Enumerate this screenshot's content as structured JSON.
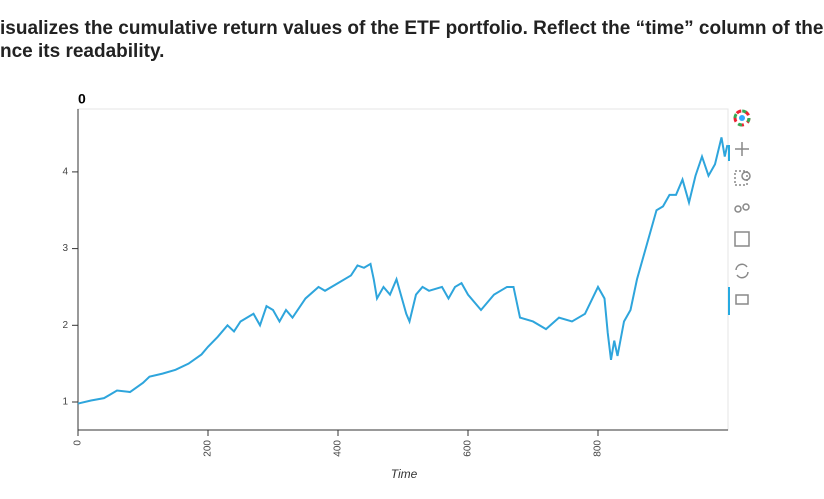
{
  "intro": [
    "isualizes the cumulative return values of the ETF portfolio. Reflect the “time” column of the D",
    "nce its readability."
  ],
  "chart_data": {
    "type": "line",
    "title": "0",
    "x_label": "Time",
    "x": [
      0,
      20,
      40,
      50,
      60,
      80,
      100,
      110,
      130,
      150,
      170,
      190,
      200,
      215,
      230,
      240,
      250,
      270,
      280,
      290,
      300,
      310,
      320,
      330,
      350,
      370,
      380,
      400,
      420,
      430,
      440,
      450,
      455,
      460,
      470,
      480,
      490,
      500,
      505,
      510,
      520,
      530,
      540,
      560,
      570,
      580,
      590,
      600,
      620,
      640,
      660,
      670,
      680,
      700,
      720,
      740,
      760,
      780,
      800,
      810,
      815,
      820,
      825,
      830,
      840,
      850,
      860,
      870,
      880,
      890,
      900,
      910,
      920,
      930,
      940,
      950,
      960,
      970,
      980,
      990,
      995,
      999
    ],
    "series": [
      {
        "name": "0",
        "color": "#2ea5dc",
        "values": [
          0.98,
          1.02,
          1.05,
          1.1,
          1.15,
          1.13,
          1.25,
          1.33,
          1.37,
          1.42,
          1.5,
          1.62,
          1.72,
          1.85,
          2.0,
          1.92,
          2.05,
          2.15,
          2.0,
          2.25,
          2.2,
          2.05,
          2.2,
          2.1,
          2.35,
          2.5,
          2.45,
          2.55,
          2.65,
          2.78,
          2.75,
          2.8,
          2.6,
          2.35,
          2.5,
          2.4,
          2.6,
          2.3,
          2.15,
          2.05,
          2.4,
          2.5,
          2.45,
          2.5,
          2.35,
          2.5,
          2.55,
          2.4,
          2.2,
          2.4,
          2.5,
          2.5,
          2.1,
          2.05,
          1.95,
          2.1,
          2.05,
          2.15,
          2.5,
          2.35,
          1.9,
          1.55,
          1.8,
          1.6,
          2.05,
          2.2,
          2.6,
          2.9,
          3.2,
          3.5,
          3.55,
          3.7,
          3.7,
          3.9,
          3.6,
          3.95,
          4.2,
          3.95,
          4.1,
          4.45,
          4.2,
          4.35
        ]
      }
    ],
    "xlim": [
      0,
      1000
    ],
    "ylim": [
      0.635,
      4.82
    ],
    "xticks": [
      0,
      200,
      400,
      600,
      800
    ],
    "yticks": [
      1,
      2,
      3,
      4
    ]
  }
}
